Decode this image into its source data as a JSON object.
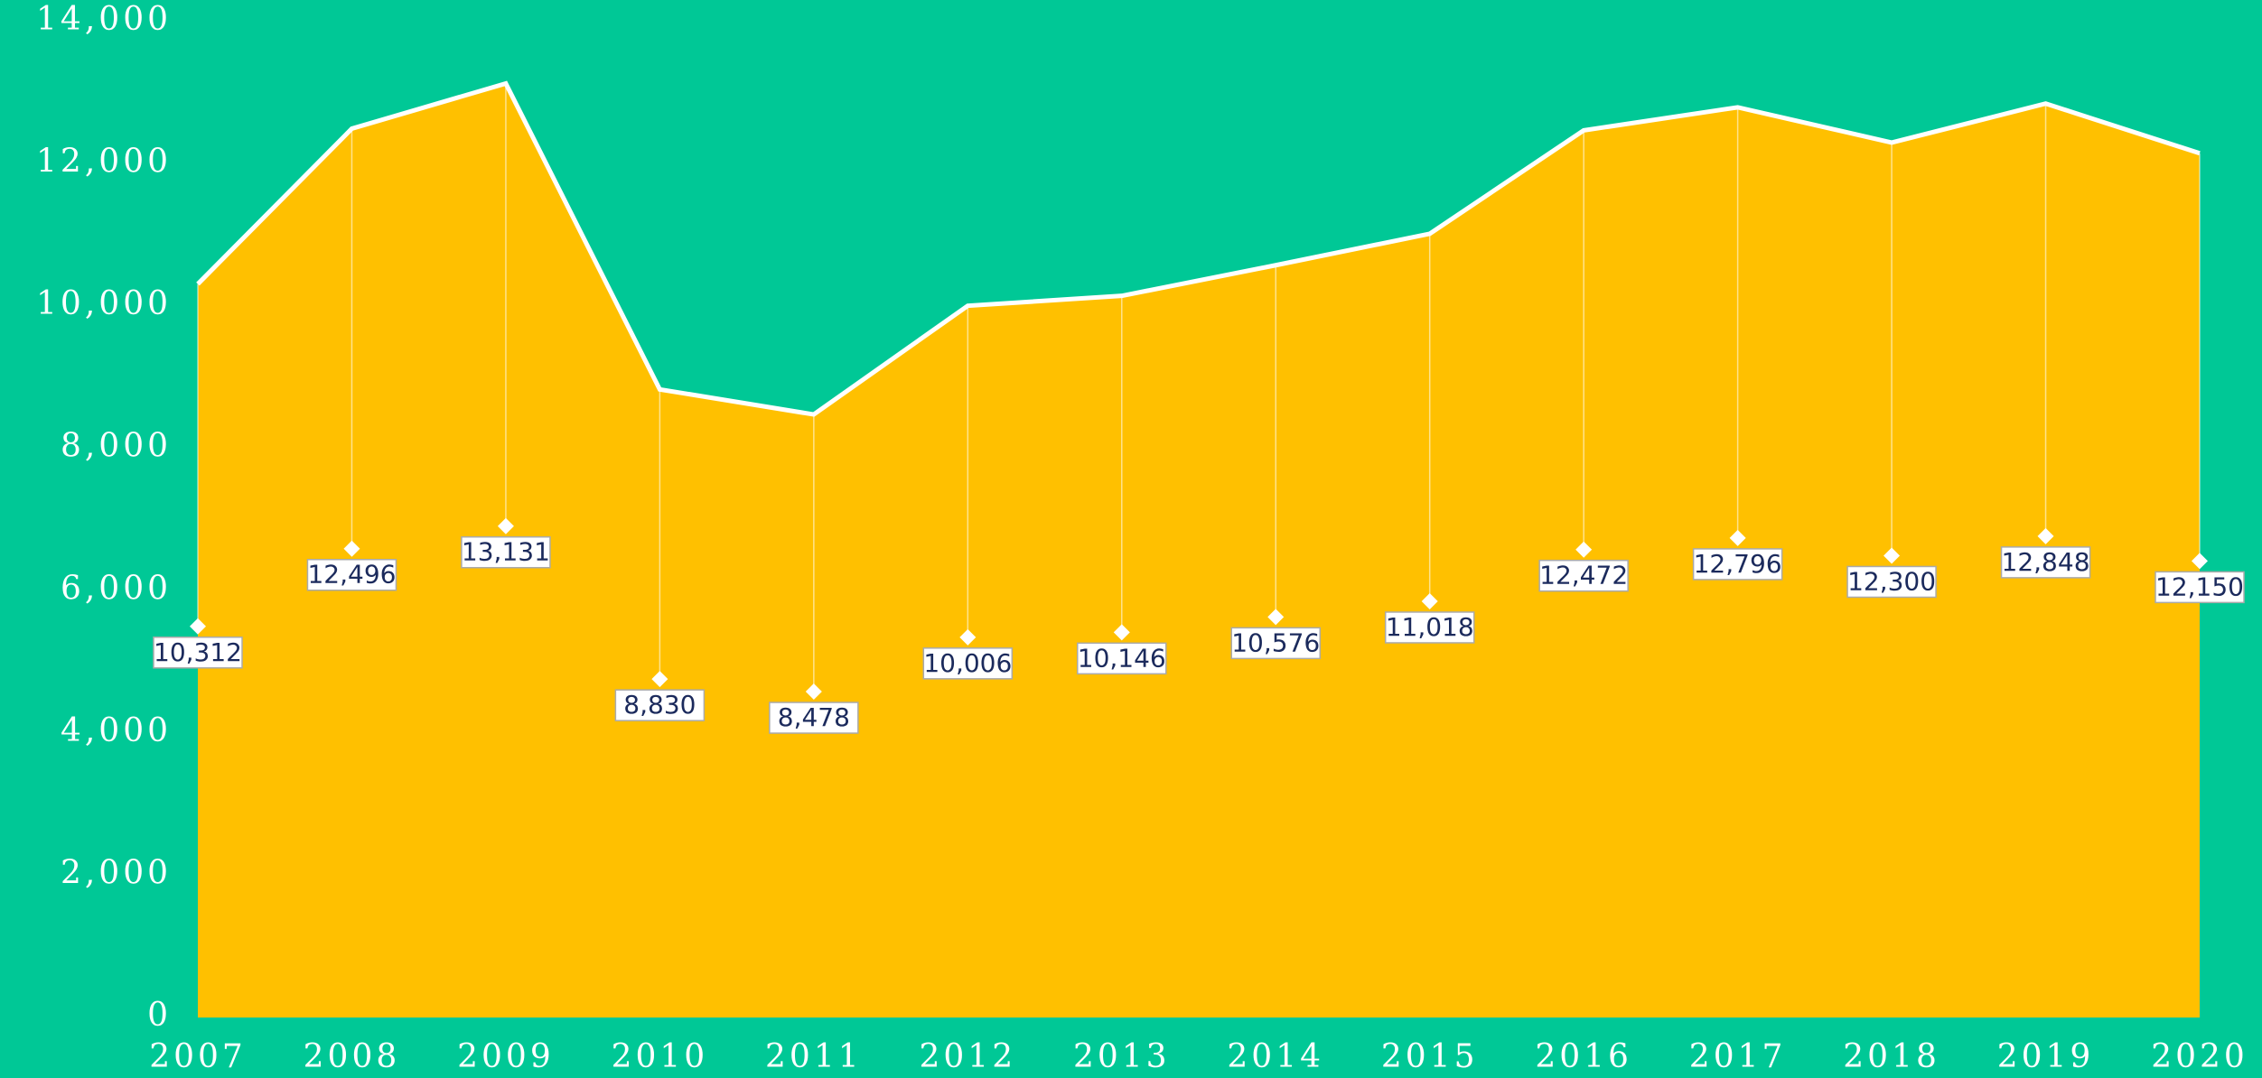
{
  "chart_data": {
    "type": "area",
    "categories": [
      "2007",
      "2008",
      "2009",
      "2010",
      "2011",
      "2012",
      "2013",
      "2014",
      "2015",
      "2016",
      "2017",
      "2018",
      "2019",
      "2020"
    ],
    "values": [
      10312,
      12496,
      13131,
      8830,
      8478,
      10006,
      10146,
      10576,
      11018,
      12472,
      12796,
      12300,
      12848,
      12150
    ],
    "value_labels": [
      "10,312",
      "12,496",
      "13,131",
      "8,830",
      "8,478",
      "10,006",
      "10,146",
      "10,576",
      "11,018",
      "12,472",
      "12,796",
      "12,300",
      "12,848",
      "12,150"
    ],
    "color": "#ffc000",
    "background": "#00c896",
    "ylim": [
      0,
      14000
    ],
    "yticks": [
      0,
      {
        "value": 2000,
        "label": "2,000"
      },
      {
        "value": 4000,
        "label": "4,000"
      },
      {
        "value": 6000,
        "label": "6,000"
      },
      {
        "value": 8000,
        "label": "8,000"
      },
      {
        "value": 10000,
        "label": "10,000"
      },
      {
        "value": 12000,
        "label": "12,000"
      },
      {
        "value": 14000,
        "label": "14,000"
      }
    ],
    "grid": false
  }
}
